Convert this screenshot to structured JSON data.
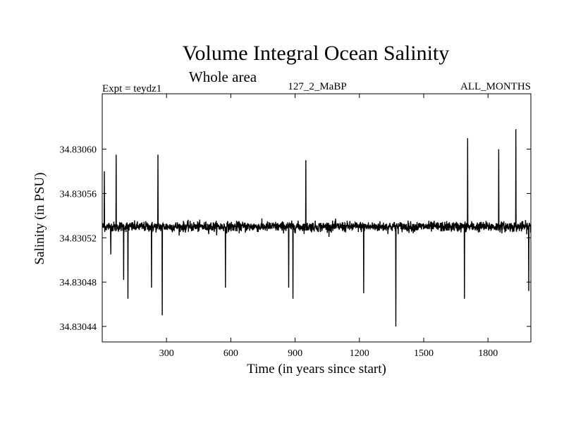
{
  "chart_data": {
    "type": "line",
    "title": "Volume Integral Ocean Salinity",
    "subtitle": "Whole area",
    "header_left": "Expt = teydz1",
    "header_center": "127_2_MaBP",
    "header_right": "ALL_MONTHS",
    "xlabel": "Time (in years since start)",
    "ylabel": "Salinity (in PSU)",
    "xlim": [
      0,
      2000
    ],
    "ylim": [
      34.830426,
      34.83065
    ],
    "xticks": [
      300,
      600,
      900,
      1200,
      1500,
      1800
    ],
    "xtick_labels": [
      "300",
      "600",
      "900",
      "1200",
      "1500",
      "1800"
    ],
    "yticks": [
      34.83044,
      34.83048,
      34.83052,
      34.83056,
      34.8306
    ],
    "ytick_labels": [
      "34.83044",
      "34.83048",
      "34.83052",
      "34.83056",
      "34.83060"
    ],
    "series": [
      {
        "name": "salinity",
        "color": "#000000",
        "x_start": 1,
        "x_end": 2000,
        "mean": 34.83053,
        "std": 2.3e-06,
        "samples": 2000,
        "extremes": [
          {
            "x": 10,
            "y": 34.83058
          },
          {
            "x": 40,
            "y": 34.830505
          },
          {
            "x": 65,
            "y": 34.830595
          },
          {
            "x": 100,
            "y": 34.830482
          },
          {
            "x": 120,
            "y": 34.830465
          },
          {
            "x": 230,
            "y": 34.830475
          },
          {
            "x": 260,
            "y": 34.830595
          },
          {
            "x": 280,
            "y": 34.83045
          },
          {
            "x": 575,
            "y": 34.830475
          },
          {
            "x": 870,
            "y": 34.830475
          },
          {
            "x": 890,
            "y": 34.830465
          },
          {
            "x": 950,
            "y": 34.83059
          },
          {
            "x": 1220,
            "y": 34.83047
          },
          {
            "x": 1370,
            "y": 34.83044
          },
          {
            "x": 1690,
            "y": 34.830465
          },
          {
            "x": 1705,
            "y": 34.83061
          },
          {
            "x": 1850,
            "y": 34.8306
          },
          {
            "x": 1930,
            "y": 34.830618
          },
          {
            "x": 1990,
            "y": 34.830472
          }
        ]
      }
    ]
  }
}
